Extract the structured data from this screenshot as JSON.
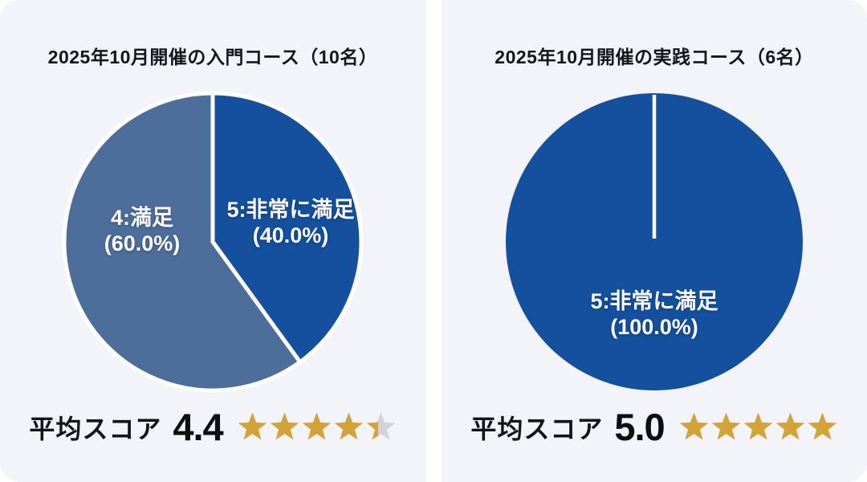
{
  "ui": {
    "background": "#ffffff",
    "panel_bg": "#f2f4f9",
    "title_color": "#14161c",
    "score_text_color": "#0d0e10",
    "slice_label_text_color": "#ffffff",
    "slice_divider_color": "#ffffff",
    "star_gold": "#d3a238",
    "star_empty": "#d2d3d6"
  },
  "chart_data": [
    {
      "type": "pie",
      "title": "2025年10月開催の入門コース（10名）",
      "n_participants": 10,
      "labels": [
        "5:非常に満足",
        "4:満足"
      ],
      "values": [
        40.0,
        60.0
      ],
      "colors": [
        "#14509e",
        "#4d6d9b"
      ],
      "slice_labels": [
        [
          "5:非常に満足",
          "(40.0%)"
        ],
        [
          "4:満足",
          "(60.0%)"
        ]
      ],
      "start_angle_deg": 0,
      "direction": "clockwise",
      "legend": "none",
      "score_label": "平均スコア",
      "score_value": "4.4",
      "rating_stars": 4.4,
      "stars_total": 5
    },
    {
      "type": "pie",
      "title": "2025年10月開催の実践コース（6名）",
      "n_participants": 6,
      "labels": [
        "5:非常に満足"
      ],
      "values": [
        100.0
      ],
      "colors": [
        "#14509e"
      ],
      "slice_labels": [
        [
          "5:非常に満足",
          "(100.0%)"
        ]
      ],
      "start_angle_deg": 0,
      "direction": "clockwise",
      "legend": "none",
      "score_label": "平均スコア",
      "score_value": "5.0",
      "rating_stars": 5.0,
      "stars_total": 5
    }
  ]
}
